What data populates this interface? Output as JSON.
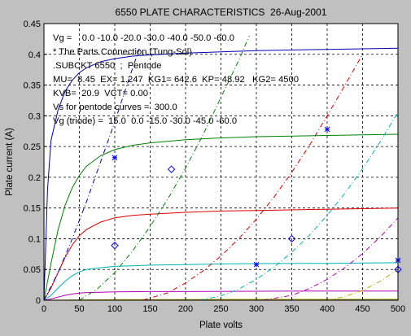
{
  "chart_data": {
    "type": "line",
    "title": "6550 PLATE CHARACTERISTICS  26-Aug-2001",
    "xlabel": "Plate volts",
    "ylabel": "Plate current (A)",
    "xlim": [
      0,
      500
    ],
    "ylim": [
      0,
      0.45
    ],
    "xticks": [
      0,
      50,
      100,
      150,
      200,
      250,
      300,
      350,
      400,
      450,
      500
    ],
    "yticks": [
      0,
      0.05,
      0.1,
      0.15,
      0.2,
      0.25,
      0.3,
      0.35,
      0.4,
      0.45
    ],
    "xtick_labels": [
      "0",
      "50",
      "100",
      "150",
      "200",
      "250",
      "300",
      "350",
      "400",
      "450",
      "500"
    ],
    "ytick_labels": [
      "0",
      "0.05",
      "0.1",
      "0.15",
      "0.2",
      "0.25",
      "0.3",
      "0.35",
      "0.4",
      "0.45"
    ],
    "grid": true,
    "grid_style": "dashed",
    "plot_background": "#ffffff",
    "annotations": [
      "Vg =    0.0 -10.0 -20.0 -30.0 -40.0 -50.0 -60.0",
      "* The Parts Connection (Tung-Sol)",
      ".SUBCKT 6550  ;  Pentode",
      "MU=  8.45  EX= 1.247  KG1= 642.6  KP= 48.92   KG2= 4500",
      "KVB=  20.9  VCT= 0.00",
      "Vs for pentode curves =  300.0",
      "Vg (triode) =  15.0  0.0 -15.0 -30.0 -45.0 -60.0"
    ],
    "pentode_series": [
      {
        "color": "#0000b4",
        "style": "solid",
        "x": [
          0,
          5,
          10,
          20,
          30,
          40,
          50,
          60,
          80,
          100,
          125,
          150,
          200,
          250,
          300,
          400,
          500
        ],
        "y": [
          0,
          0.18,
          0.26,
          0.31,
          0.34,
          0.358,
          0.37,
          0.378,
          0.388,
          0.393,
          0.397,
          0.399,
          0.402,
          0.404,
          0.406,
          0.408,
          0.41
        ]
      },
      {
        "color": "#008000",
        "style": "solid",
        "x": [
          0,
          10,
          20,
          30,
          40,
          50,
          60,
          80,
          100,
          125,
          150,
          200,
          250,
          300,
          400,
          500
        ],
        "y": [
          0,
          0.06,
          0.115,
          0.155,
          0.183,
          0.203,
          0.218,
          0.235,
          0.245,
          0.252,
          0.256,
          0.261,
          0.264,
          0.266,
          0.268,
          0.27
        ]
      },
      {
        "color": "#e00000",
        "style": "solid",
        "x": [
          0,
          10,
          20,
          30,
          40,
          50,
          60,
          80,
          100,
          125,
          150,
          200,
          250,
          300,
          400,
          500
        ],
        "y": [
          0,
          0.02,
          0.045,
          0.07,
          0.09,
          0.105,
          0.115,
          0.127,
          0.134,
          0.138,
          0.14,
          0.143,
          0.145,
          0.146,
          0.148,
          0.15
        ]
      },
      {
        "color": "#00b4b4",
        "style": "solid",
        "x": [
          0,
          10,
          20,
          30,
          40,
          50,
          60,
          80,
          100,
          125,
          150,
          200,
          250,
          300,
          400,
          500
        ],
        "y": [
          0,
          0.008,
          0.02,
          0.031,
          0.04,
          0.046,
          0.05,
          0.053,
          0.055,
          0.056,
          0.057,
          0.058,
          0.059,
          0.0595,
          0.06,
          0.061
        ]
      },
      {
        "color": "#b400b4",
        "style": "solid",
        "x": [
          0,
          10,
          20,
          30,
          40,
          50,
          60,
          80,
          100,
          150,
          200,
          300,
          400,
          500
        ],
        "y": [
          0,
          0.002,
          0.005,
          0.008,
          0.01,
          0.0115,
          0.0125,
          0.013,
          0.0135,
          0.014,
          0.014,
          0.0145,
          0.015,
          0.015
        ]
      },
      {
        "color": "#b4b400",
        "style": "solid",
        "x": [
          0,
          50,
          100,
          200,
          300,
          400,
          500
        ],
        "y": [
          0,
          0.0005,
          0.001,
          0.0012,
          0.0014,
          0.0015,
          0.0016
        ]
      },
      {
        "color": "#404040",
        "style": "solid",
        "x": [
          0,
          100,
          200,
          300,
          400,
          500
        ],
        "y": [
          0,
          0,
          0.0001,
          0.0001,
          0.0002,
          0.0002
        ]
      }
    ],
    "triode_series": [
      {
        "color": "#0000b4",
        "style": "dashdot",
        "x": [
          0,
          20,
          40,
          60,
          80,
          100,
          120,
          135
        ],
        "y": [
          0,
          0.045,
          0.1,
          0.16,
          0.225,
          0.29,
          0.36,
          0.41
        ]
      },
      {
        "color": "#008000",
        "style": "dashdot",
        "x": [
          50,
          75,
          100,
          125,
          150,
          175,
          200,
          225,
          250,
          275,
          290
        ],
        "y": [
          0,
          0.018,
          0.045,
          0.08,
          0.12,
          0.165,
          0.215,
          0.27,
          0.33,
          0.39,
          0.43
        ]
      },
      {
        "color": "#e00000",
        "style": "dashdot",
        "x": [
          140,
          175,
          200,
          225,
          250,
          275,
          300,
          325,
          350,
          375,
          400,
          425,
          450
        ],
        "y": [
          0,
          0.012,
          0.028,
          0.048,
          0.072,
          0.1,
          0.132,
          0.168,
          0.208,
          0.252,
          0.3,
          0.35,
          0.4
        ]
      },
      {
        "color": "#00b4b4",
        "style": "dashdot",
        "x": [
          220,
          250,
          275,
          300,
          325,
          350,
          375,
          400,
          425,
          450,
          475,
          500
        ],
        "y": [
          0,
          0.007,
          0.018,
          0.034,
          0.054,
          0.078,
          0.106,
          0.138,
          0.174,
          0.214,
          0.258,
          0.306
        ]
      },
      {
        "color": "#b400b4",
        "style": "dashdot",
        "x": [
          310,
          350,
          375,
          400,
          425,
          450,
          475,
          500
        ],
        "y": [
          0,
          0.008,
          0.019,
          0.034,
          0.053,
          0.076,
          0.103,
          0.134
        ]
      },
      {
        "color": "#b4b400",
        "style": "dashdot",
        "x": [
          400,
          425,
          450,
          475,
          500
        ],
        "y": [
          0,
          0.006,
          0.016,
          0.031,
          0.05
        ]
      }
    ],
    "diamond_markers": [
      {
        "x": 100,
        "y": 0.089
      },
      {
        "x": 180,
        "y": 0.213
      },
      {
        "x": 350,
        "y": 0.1
      },
      {
        "x": 500,
        "y": 0.05
      }
    ],
    "star_markers": [
      {
        "x": 100,
        "y": 0.232
      },
      {
        "x": 300,
        "y": 0.058
      },
      {
        "x": 400,
        "y": 0.278
      },
      {
        "x": 500,
        "y": 0.065
      }
    ]
  }
}
